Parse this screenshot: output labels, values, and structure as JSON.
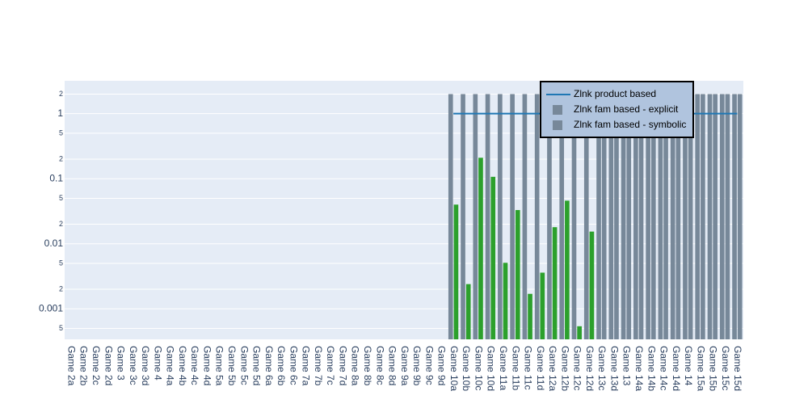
{
  "chart_data": {
    "type": "bar",
    "categories": [
      "Game 2a",
      "Game 2b",
      "Game 2c",
      "Game 2d",
      "Game 3",
      "Game 3c",
      "Game 3d",
      "Game 4",
      "Game 4a",
      "Game 4b",
      "Game 4c",
      "Game 4d",
      "Game 5a",
      "Game 5b",
      "Game 5c",
      "Game 5d",
      "Game 6a",
      "Game 6b",
      "Game 6c",
      "Game 7a",
      "Game 7b",
      "Game 7c",
      "Game 7d",
      "Game 8a",
      "Game 8b",
      "Game 8c",
      "Game 8d",
      "Game 9a",
      "Game 9b",
      "Game 9c",
      "Game 9d",
      "Game 10a",
      "Game 10b",
      "Game 10c",
      "Game 10d",
      "Game 11a",
      "Game 11b",
      "Game 11c",
      "Game 11d",
      "Game 12a",
      "Game 12b",
      "Game 12c",
      "Game 12d",
      "Game 13c",
      "Game 13d",
      "Game 13",
      "Game 14a",
      "Game 14b",
      "Game 14c",
      "Game 14d",
      "Game 14",
      "Game 15a",
      "Game 15b",
      "Game 15c",
      "Game 15d"
    ],
    "series": [
      {
        "name": "Zlnk product based",
        "type": "line",
        "color": "#1f77b4",
        "values": [
          null,
          null,
          null,
          null,
          null,
          null,
          null,
          null,
          null,
          null,
          null,
          null,
          null,
          null,
          null,
          null,
          null,
          null,
          null,
          null,
          null,
          null,
          null,
          null,
          null,
          null,
          null,
          null,
          null,
          null,
          null,
          1,
          1,
          1,
          1,
          1,
          1,
          1,
          1,
          1,
          1,
          1,
          1,
          1,
          1,
          1,
          1,
          1,
          1,
          1,
          1,
          1,
          1,
          1,
          1
        ]
      },
      {
        "name": "Zlnk fam based - explicit",
        "type": "bar",
        "color": "#778899",
        "values": [
          null,
          null,
          null,
          null,
          null,
          null,
          null,
          null,
          null,
          null,
          null,
          null,
          null,
          null,
          null,
          null,
          null,
          null,
          null,
          null,
          null,
          null,
          null,
          null,
          null,
          null,
          null,
          null,
          null,
          null,
          null,
          2,
          2,
          2,
          2,
          2,
          2,
          2,
          2,
          2,
          2,
          2,
          2,
          2,
          2,
          2,
          2,
          2,
          2,
          2,
          2,
          2,
          2,
          2,
          2
        ]
      },
      {
        "name": "Zlnk fam based - symbolic",
        "type": "bar",
        "color": "#778899",
        "highlight_color": "#2ca02c",
        "highlight_categories": [
          "Game 10a",
          "Game 10b",
          "Game 10c",
          "Game 10d",
          "Game 11a",
          "Game 11b",
          "Game 11c",
          "Game 11d",
          "Game 12a",
          "Game 12b",
          "Game 12c",
          "Game 12d"
        ],
        "values": [
          null,
          null,
          null,
          null,
          null,
          null,
          null,
          null,
          null,
          null,
          null,
          null,
          null,
          null,
          null,
          null,
          null,
          null,
          null,
          null,
          null,
          null,
          null,
          null,
          null,
          null,
          null,
          null,
          null,
          null,
          null,
          0.04,
          0.0024,
          0.21,
          0.107,
          0.0051,
          0.033,
          0.0017,
          0.0036,
          0.018,
          0.046,
          0.00054,
          0.0154,
          2,
          2,
          2,
          2,
          2,
          2,
          2,
          2,
          2,
          2,
          2,
          2
        ]
      }
    ],
    "ylog": true,
    "ylim": [
      0.00034,
      3.2
    ],
    "yticks": [
      {
        "value": 0.0005,
        "label": "5"
      },
      0.001,
      {
        "value": 0.002,
        "label": "2"
      },
      {
        "value": 0.005,
        "label": "5"
      },
      0.01,
      {
        "value": 0.02,
        "label": "2"
      },
      {
        "value": 0.05,
        "label": "5"
      },
      0.1,
      {
        "value": 0.2,
        "label": "2"
      },
      {
        "value": 0.5,
        "label": "5"
      },
      1,
      {
        "value": 2,
        "label": "2"
      }
    ],
    "grid": true,
    "legend": "top-right"
  }
}
